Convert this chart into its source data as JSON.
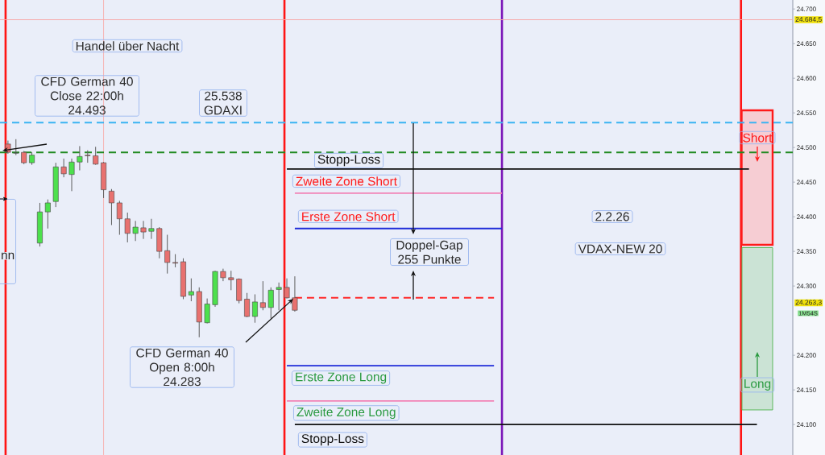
{
  "chart_data": {
    "type": "candlestick",
    "categories": [
      null,
      null,
      null,
      null,
      null,
      null,
      null,
      null,
      null,
      null,
      null,
      null,
      null,
      null,
      null,
      null,
      null,
      null,
      null,
      null,
      null,
      null,
      null,
      null,
      null,
      null,
      null,
      null,
      null,
      null,
      null,
      null,
      null,
      null,
      null,
      null,
      null,
      null,
      null,
      null,
      null,
      null,
      null,
      null,
      null,
      null,
      null,
      null,
      null,
      null,
      null,
      null,
      null,
      null,
      null,
      null,
      null,
      null,
      null,
      null,
      null,
      null,
      null,
      null,
      null,
      null,
      null,
      null,
      null,
      null,
      null,
      null,
      null,
      null,
      null,
      null,
      null,
      null,
      null,
      null,
      null,
      null,
      null,
      null,
      null,
      null,
      null,
      null,
      null,
      null,
      null,
      null,
      null,
      null,
      null,
      null,
      null,
      null,
      null
    ],
    "ohlc": [
      [
        24505,
        24510,
        24491,
        24493
      ],
      [
        24492,
        24512,
        24489,
        24492
      ],
      [
        24493,
        24495,
        24476,
        24478
      ],
      [
        24478,
        24493,
        24475,
        24489
      ],
      [
        24362,
        24420,
        24357,
        24407
      ],
      [
        24407,
        24425,
        24383,
        24420
      ],
      [
        24422,
        24478,
        24414,
        24472
      ],
      [
        24472,
        24484,
        24457,
        24462
      ],
      [
        24461,
        24484,
        24437,
        24479
      ],
      [
        24479,
        24502,
        24467,
        24487
      ],
      [
        24489,
        24496,
        24478,
        24488
      ],
      [
        24488,
        24501,
        24475,
        24476
      ],
      [
        24478,
        24479,
        24427,
        24439
      ],
      [
        24437,
        24440,
        24388,
        24420
      ],
      [
        24420,
        24423,
        24374,
        24397
      ],
      [
        24397,
        24406,
        24363,
        24376
      ],
      [
        24376,
        24394,
        24365,
        24385
      ],
      [
        24384,
        24394,
        24368,
        24378
      ],
      [
        24379,
        24397,
        24368,
        24383
      ],
      [
        24383,
        24385,
        24340,
        24350
      ],
      [
        24351,
        24374,
        24318,
        24334
      ],
      [
        24334,
        24346,
        24327,
        24333
      ],
      [
        24335,
        24340,
        24281,
        24285
      ],
      [
        24287,
        24311,
        24278,
        24292
      ],
      [
        24292,
        24298,
        24226,
        24248
      ],
      [
        24247,
        24282,
        24246,
        24274
      ],
      [
        24273,
        24322,
        24270,
        24321
      ],
      [
        24321,
        24325,
        24307,
        24312
      ],
      [
        24312,
        24322,
        24294,
        24309
      ],
      [
        24310,
        24311,
        24275,
        24279
      ],
      [
        24281,
        24290,
        24255,
        24256
      ],
      [
        24256,
        24288,
        24247,
        24277
      ],
      [
        24276,
        24307,
        24265,
        24269
      ],
      [
        24269,
        24298,
        24253,
        24294
      ],
      [
        24295,
        24305,
        24265,
        24298
      ],
      [
        24298,
        24311,
        24282,
        24283
      ],
      [
        24283,
        24314,
        24263,
        24265
      ],
      null,
      null,
      null,
      null,
      null,
      null,
      null,
      null,
      null,
      null,
      null,
      null,
      null,
      null,
      null,
      null,
      null,
      null,
      null,
      null,
      null,
      null,
      null,
      null,
      null,
      null,
      null,
      null,
      null,
      null,
      null,
      null,
      null,
      null,
      null,
      null,
      null,
      null,
      null,
      null,
      null,
      null,
      null,
      null,
      null,
      null,
      null,
      null,
      null,
      null,
      null,
      null,
      null,
      null,
      null,
      null,
      null,
      null,
      null,
      null,
      null,
      null
    ],
    "colors": [
      "#E8716F",
      "#474747",
      "#E8716F",
      "#4DE04D",
      "#4DE04D",
      "#4DE04D",
      "#4DE04D",
      "#E8716F",
      "#4DE04D",
      "#4DE04D",
      "#E8716F",
      "#E8716F",
      "#E8716F",
      "#E8716F",
      "#E8716F",
      "#E8716F",
      "#4DE04D",
      "#E8716F",
      "#4DE04D",
      "#E8716F",
      "#E8716F",
      "#E8716F",
      "#E8716F",
      "#4DE04D",
      "#E8716F",
      "#4DE04D",
      "#4DE04D",
      "#E8716F",
      "#E8716F",
      "#E8716F",
      "#E8716F",
      "#4DE04D",
      "#E8716F",
      "#4DE04D",
      "#4DE04D",
      "#E8716F",
      "#E8716F",
      null,
      null,
      null,
      null,
      null,
      null,
      null,
      null,
      null,
      null,
      null,
      null,
      null,
      null,
      null,
      null,
      null,
      null,
      null,
      null,
      null,
      null,
      null,
      null,
      null,
      null,
      null,
      null,
      null,
      null,
      null,
      null,
      null,
      null,
      null,
      null,
      null,
      null,
      null,
      null,
      null,
      null,
      null,
      null,
      null,
      null,
      null,
      null,
      null,
      null,
      null,
      null,
      null,
      null,
      null,
      null,
      null,
      null,
      null,
      null,
      null,
      null
    ],
    "series": [
      {
        "name": "Stopp-Loss",
        "type": "line",
        "color": "#111111",
        "values": [
          null,
          null,
          null,
          null,
          null,
          null,
          null,
          null,
          null,
          null,
          null,
          null,
          null,
          null,
          null,
          null,
          null,
          null,
          null,
          null,
          null,
          null,
          null,
          null,
          null,
          null,
          null,
          null,
          null,
          null,
          null,
          null,
          null,
          null,
          null,
          24469,
          24469,
          24469,
          24469,
          24469,
          24469,
          24469,
          24469,
          24469,
          24469,
          24469,
          24469,
          24469,
          24469,
          24469,
          24469,
          24469,
          24469,
          24469,
          24469,
          24469,
          24469,
          24469,
          24469,
          24469,
          24469,
          24469,
          24469,
          24469,
          24469,
          24469,
          24469,
          24469,
          24469,
          24469,
          24469,
          24469,
          24469,
          24469,
          24469,
          24469,
          24469,
          24469,
          24469,
          24469,
          24469,
          24469,
          24469,
          24469,
          24469,
          24469,
          24469,
          24469,
          24469,
          24469,
          24469,
          24469,
          24469,
          24469,
          null,
          null,
          null,
          null,
          null
        ]
      },
      {
        "name": "Zweite Zone Short",
        "type": "line",
        "color": "#F283B6",
        "values": [
          null,
          null,
          null,
          null,
          null,
          null,
          null,
          null,
          null,
          null,
          null,
          null,
          null,
          null,
          null,
          null,
          null,
          null,
          null,
          null,
          null,
          null,
          null,
          null,
          null,
          null,
          null,
          null,
          null,
          null,
          null,
          null,
          null,
          null,
          null,
          null,
          24434,
          24434,
          24434,
          24434,
          24434,
          24434,
          24434,
          24434,
          24434,
          24434,
          24434,
          24434,
          24434,
          24434,
          24434,
          24434,
          24434,
          24434,
          24434,
          24434,
          24434,
          24434,
          24434,
          24434,
          24434,
          24434,
          24434,
          null,
          null,
          null,
          null,
          null,
          null,
          null,
          null,
          null,
          null,
          null,
          null,
          null,
          null,
          null,
          null,
          null,
          null,
          null,
          null,
          null,
          null,
          null,
          null,
          null,
          null,
          null,
          null,
          null,
          null,
          null,
          null,
          null,
          null,
          null,
          null
        ]
      },
      {
        "name": "Erste Zone Short",
        "type": "line",
        "color": "#1E2BD8",
        "values": [
          null,
          null,
          null,
          null,
          null,
          null,
          null,
          null,
          null,
          null,
          null,
          null,
          null,
          null,
          null,
          null,
          null,
          null,
          null,
          null,
          null,
          null,
          null,
          null,
          null,
          null,
          null,
          null,
          null,
          null,
          null,
          null,
          null,
          null,
          null,
          null,
          24383,
          24383,
          24383,
          24383,
          24383,
          24383,
          24383,
          24383,
          24383,
          24383,
          24383,
          24383,
          24383,
          24383,
          24383,
          24383,
          24383,
          24383,
          24383,
          24383,
          24383,
          24383,
          24383,
          24383,
          24383,
          24383,
          24383,
          null,
          null,
          null,
          null,
          null,
          null,
          null,
          null,
          null,
          null,
          null,
          null,
          null,
          null,
          null,
          null,
          null,
          null,
          null,
          null,
          null,
          null,
          null,
          null,
          null,
          null,
          null,
          null,
          null,
          null,
          null,
          null,
          null,
          null,
          null,
          null
        ]
      },
      {
        "type": "line",
        "color": "#FF2A2A",
        "line_style": "dashed",
        "values": [
          null,
          null,
          null,
          null,
          null,
          null,
          null,
          null,
          null,
          null,
          null,
          null,
          null,
          null,
          null,
          null,
          null,
          null,
          null,
          null,
          null,
          null,
          null,
          null,
          null,
          null,
          null,
          null,
          null,
          null,
          null,
          null,
          null,
          null,
          null,
          null,
          24283,
          24283,
          24283,
          24283,
          24283,
          24283,
          24283,
          24283,
          24283,
          24283,
          24283,
          24283,
          24283,
          24283,
          24283,
          24283,
          24283,
          24283,
          24283,
          24283,
          24283,
          24283,
          24283,
          24283,
          24283,
          24283,
          null,
          null,
          null,
          null,
          null,
          null,
          null,
          null,
          null,
          null,
          null,
          null,
          null,
          null,
          null,
          null,
          null,
          null,
          null,
          null,
          null,
          null,
          null,
          null,
          null,
          null,
          null,
          null,
          null,
          null,
          null,
          null,
          null,
          null,
          null,
          null,
          null
        ]
      },
      {
        "name": "Erste Zone Long",
        "type": "line",
        "color": "#1E2BD8",
        "values": [
          null,
          null,
          null,
          null,
          null,
          null,
          null,
          null,
          null,
          null,
          null,
          null,
          null,
          null,
          null,
          null,
          null,
          null,
          null,
          null,
          null,
          null,
          null,
          null,
          null,
          null,
          null,
          null,
          null,
          null,
          null,
          null,
          null,
          null,
          null,
          24185,
          24185,
          24185,
          24185,
          24185,
          24185,
          24185,
          24185,
          24185,
          24185,
          24185,
          24185,
          24185,
          24185,
          24185,
          24185,
          24185,
          24185,
          24185,
          24185,
          24185,
          24185,
          24185,
          24185,
          24185,
          24185,
          24185,
          null,
          null,
          null,
          null,
          null,
          null,
          null,
          null,
          null,
          null,
          null,
          null,
          null,
          null,
          null,
          null,
          null,
          null,
          null,
          null,
          null,
          null,
          null,
          null,
          null,
          null,
          null,
          null,
          null,
          null,
          null,
          null,
          null,
          null,
          null,
          null,
          null
        ]
      },
      {
        "name": "Zweite Zone Long",
        "type": "line",
        "color": "#F283B6",
        "values": [
          null,
          null,
          null,
          null,
          null,
          null,
          null,
          null,
          null,
          null,
          null,
          null,
          null,
          null,
          null,
          null,
          null,
          null,
          null,
          null,
          null,
          null,
          null,
          null,
          null,
          null,
          null,
          null,
          null,
          null,
          null,
          null,
          null,
          null,
          null,
          24134,
          24134,
          24134,
          24134,
          24134,
          24134,
          24134,
          24134,
          24134,
          24134,
          24134,
          24134,
          24134,
          24134,
          24134,
          24134,
          24134,
          24134,
          24134,
          24134,
          24134,
          24134,
          24134,
          24134,
          24134,
          24134,
          24134,
          null,
          null,
          null,
          null,
          null,
          null,
          null,
          null,
          null,
          null,
          null,
          null,
          null,
          null,
          null,
          null,
          null,
          null,
          null,
          null,
          null,
          null,
          null,
          null,
          null,
          null,
          null,
          null,
          null,
          null,
          null,
          null,
          null,
          null,
          null,
          null,
          null
        ]
      },
      {
        "name": "Stopp-Loss",
        "type": "line",
        "color": "#111111",
        "values": [
          null,
          null,
          null,
          null,
          null,
          null,
          null,
          null,
          null,
          null,
          null,
          null,
          null,
          null,
          null,
          null,
          null,
          null,
          null,
          null,
          null,
          null,
          null,
          null,
          null,
          null,
          null,
          null,
          null,
          null,
          null,
          null,
          null,
          null,
          null,
          null,
          24100,
          24100,
          24100,
          24100,
          24100,
          24100,
          24100,
          24100,
          24100,
          24100,
          24100,
          24100,
          24100,
          24100,
          24100,
          24100,
          24100,
          24100,
          24100,
          24100,
          24100,
          24100,
          24100,
          24100,
          24100,
          24100,
          24100,
          24100,
          24100,
          24100,
          24100,
          24100,
          24100,
          24100,
          24100,
          24100,
          24100,
          24100,
          24100,
          24100,
          24100,
          24100,
          24100,
          24100,
          24100,
          24100,
          24100,
          24100,
          24100,
          24100,
          24100,
          24100,
          24100,
          24100,
          24100,
          24100,
          24100,
          24100,
          24100,
          null,
          null,
          null,
          null
        ]
      }
    ],
    "ref_lines": [
      {
        "axis": "y",
        "value": 24536,
        "color": "#3AB4F2",
        "line_style": "dashed"
      },
      {
        "axis": "y",
        "value": 24493,
        "color": "#228B22",
        "line_style": "dashed"
      },
      {
        "axis": "y",
        "value": 24684.5,
        "label": "24.684,5",
        "color": "#F6A8A8"
      }
    ],
    "ylim": [
      24056,
      24713
    ],
    "yticks": [
      {
        "value": 24100,
        "label": "24.100"
      },
      {
        "value": 24150,
        "label": "24.150"
      },
      {
        "value": 24200,
        "label": "24.200"
      },
      {
        "value": 24300,
        "label": "24.300"
      },
      {
        "value": 24350,
        "label": "24.350"
      },
      {
        "value": 24400,
        "label": "24.400"
      },
      {
        "value": 24450,
        "label": "24.450"
      },
      {
        "value": 24500,
        "label": "24.500"
      },
      {
        "value": 24550,
        "label": "24.550"
      },
      {
        "value": 24600,
        "label": "24.600"
      },
      {
        "value": 24650,
        "label": "24.650"
      },
      {
        "value": 24700,
        "label": "24.700"
      }
    ],
    "tick_labels": "y",
    "annotations": [
      "Handel über Nacht",
      "CFD German 40 Close 22:00h 24.493",
      "25.538 GDAXI",
      "Doppel-Gap 255 Punkte",
      "CFD German 40 Open 8:00h 24.283",
      "2.2.26",
      "VDAX-NEW 20",
      "Short",
      "Long",
      "24.263,3",
      "1M54S",
      "nn"
    ]
  }
}
